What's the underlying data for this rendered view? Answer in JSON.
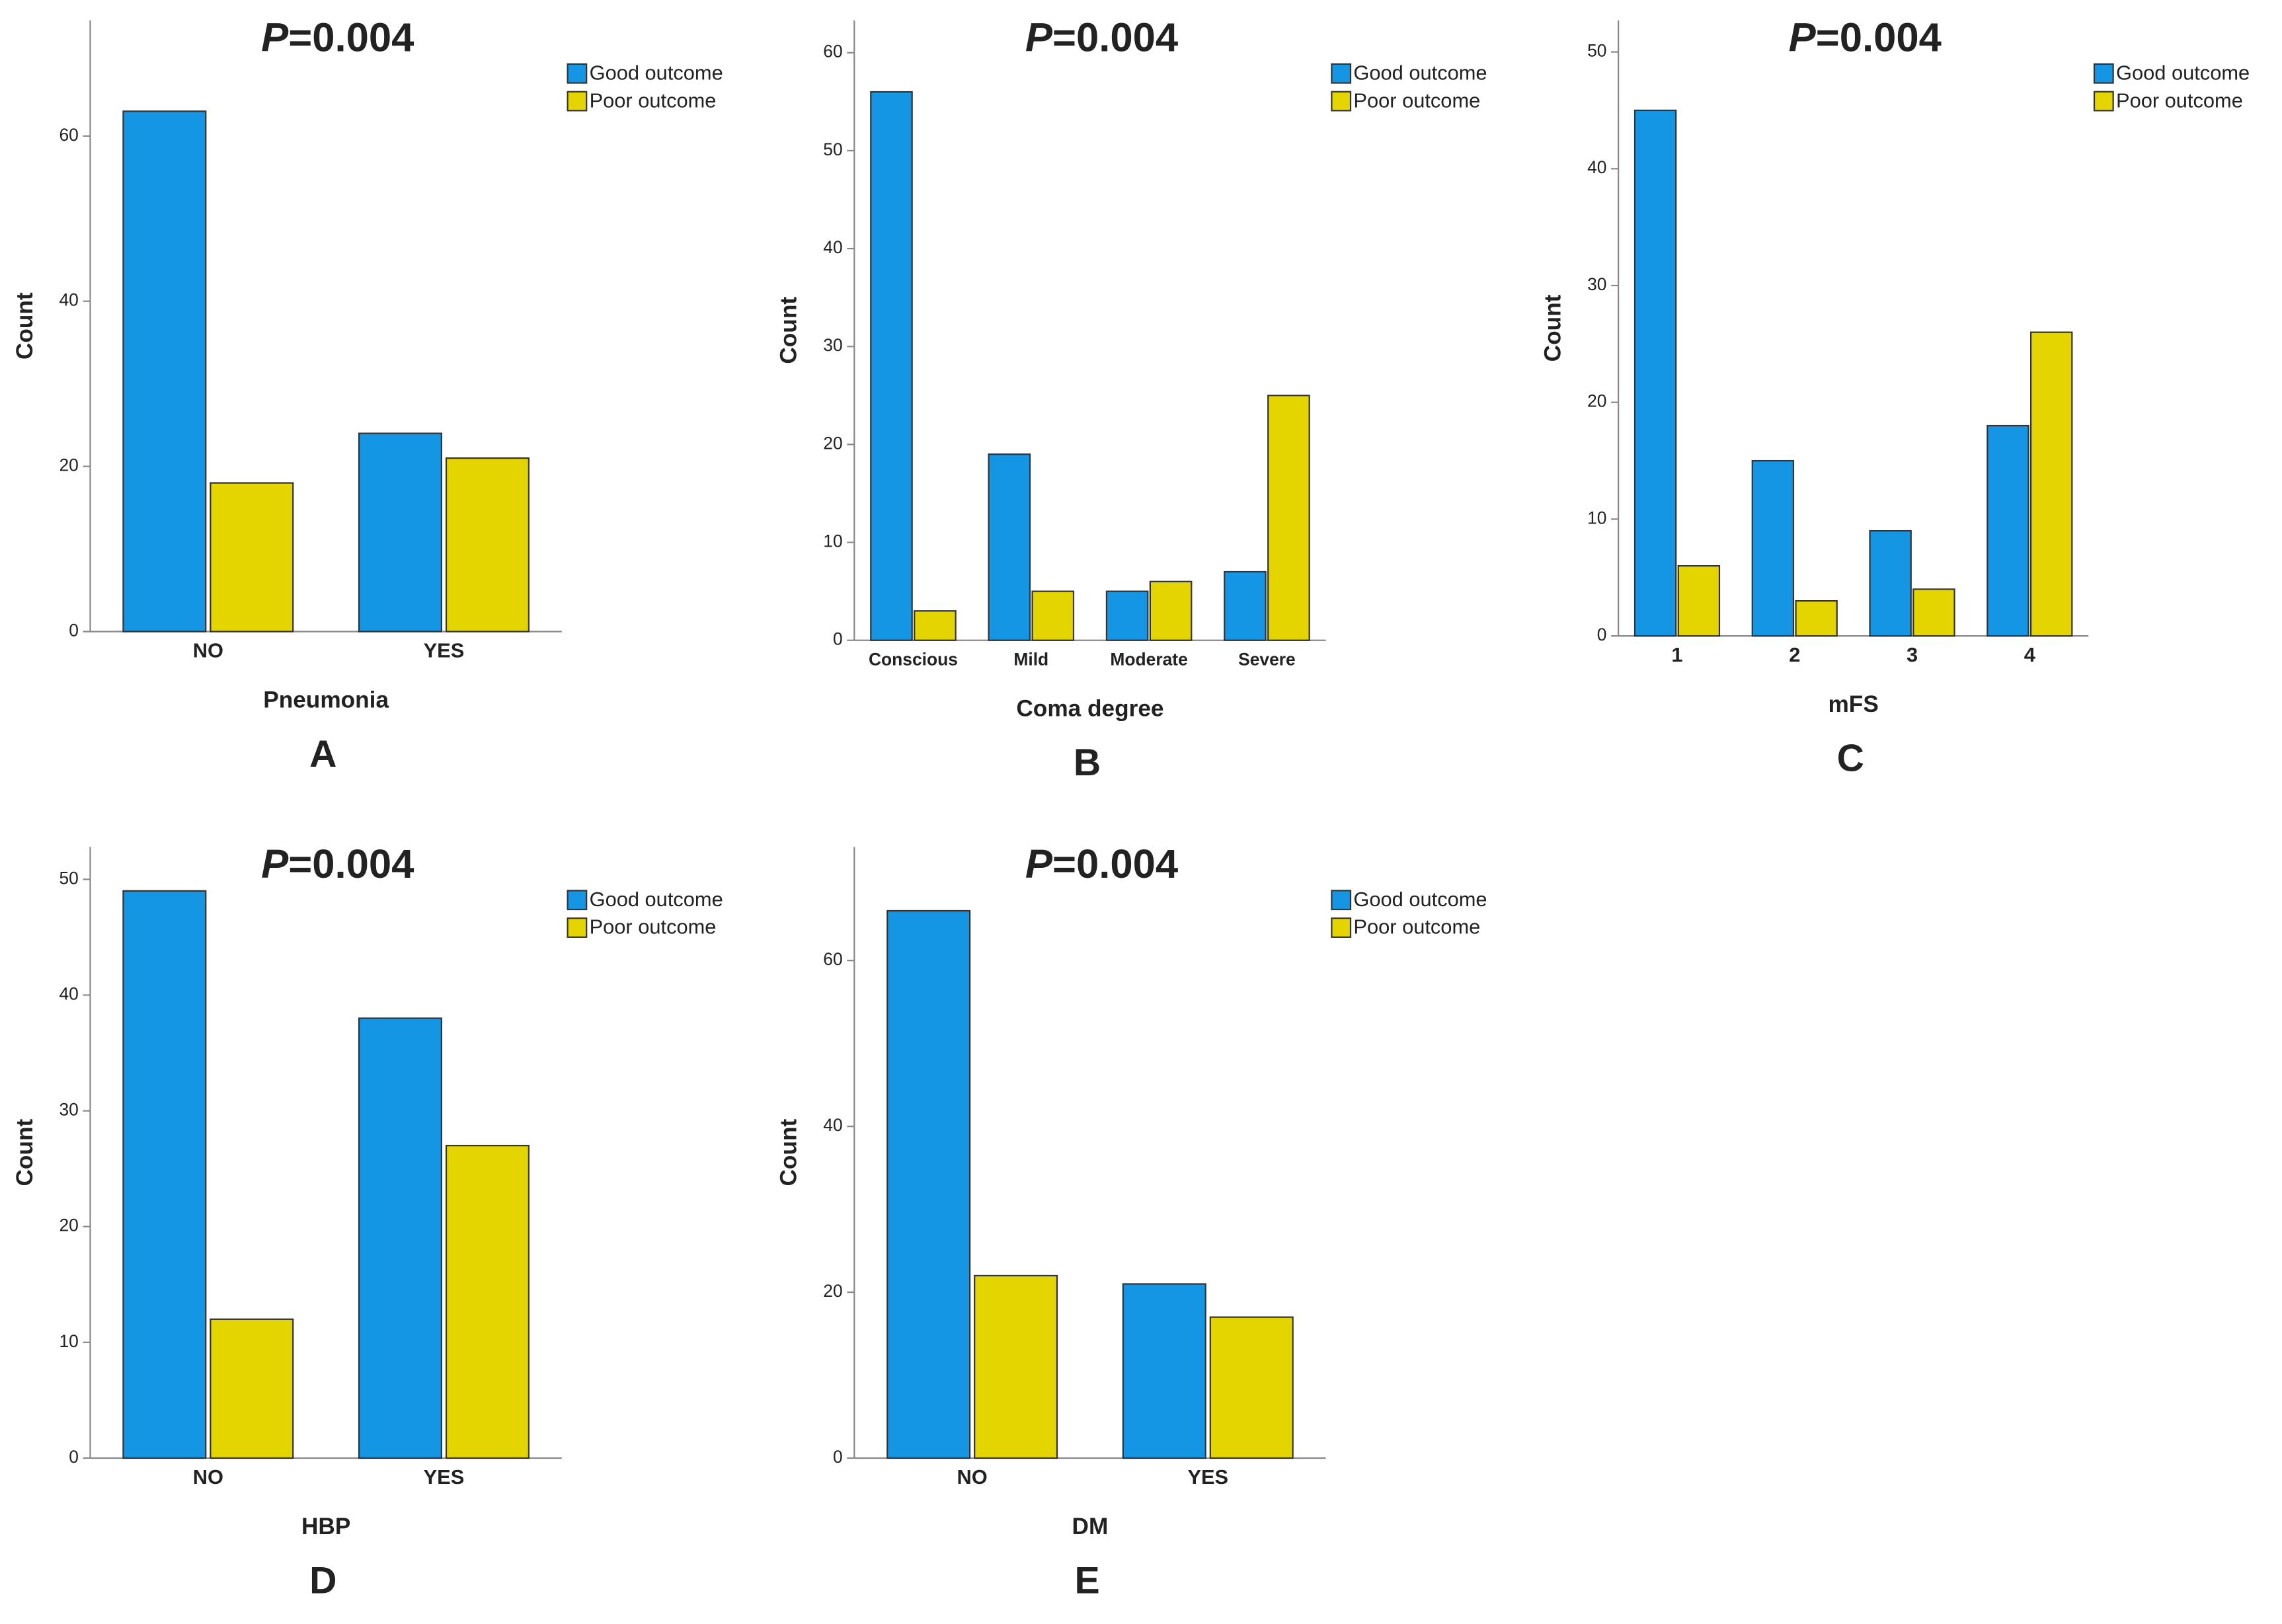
{
  "chart_data": [
    {
      "type": "bar",
      "title": "P=0.004",
      "panel_label": "A",
      "x_label": "Pneumonia",
      "y_label": "Count",
      "categories": [
        "NO",
        "YES"
      ],
      "series": [
        {
          "name": "Good outcome",
          "color": "#1496e4",
          "values": [
            63,
            24
          ]
        },
        {
          "name": "Poor outcome",
          "color": "#e4d500",
          "values": [
            18,
            21
          ]
        }
      ],
      "ylim": [
        0,
        74
      ],
      "yticks": [
        0,
        20,
        40,
        60
      ]
    },
    {
      "type": "bar",
      "title": "P=0.004",
      "panel_label": "B",
      "x_label": "Coma degree",
      "y_label": "Count",
      "categories": [
        "Conscious",
        "Mild",
        "Moderate",
        "Severe"
      ],
      "series": [
        {
          "name": "Good outcome",
          "color": "#1496e4",
          "values": [
            56,
            19,
            5,
            7
          ]
        },
        {
          "name": "Poor outcome",
          "color": "#e4d500",
          "values": [
            3,
            5,
            6,
            25
          ]
        }
      ],
      "ylim": [
        0,
        63.3
      ],
      "yticks": [
        0,
        10,
        20,
        30,
        40,
        50,
        60
      ]
    },
    {
      "type": "bar",
      "title": "P=0.004",
      "panel_label": "C",
      "x_label": "mFS",
      "y_label": "Count",
      "categories": [
        "1",
        "2",
        "3",
        "4"
      ],
      "series": [
        {
          "name": "Good outcome",
          "color": "#1496e4",
          "values": [
            45,
            15,
            9,
            18
          ]
        },
        {
          "name": "Poor outcome",
          "color": "#e4d500",
          "values": [
            6,
            3,
            4,
            26
          ]
        }
      ],
      "ylim": [
        0,
        52.7
      ],
      "yticks": [
        0,
        10,
        20,
        30,
        40,
        50
      ]
    },
    {
      "type": "bar",
      "title": "P=0.004",
      "panel_label": "D",
      "x_label": "HBP",
      "y_label": "Count",
      "categories": [
        "NO",
        "YES"
      ],
      "series": [
        {
          "name": "Good outcome",
          "color": "#1496e4",
          "values": [
            49,
            38
          ]
        },
        {
          "name": "Poor outcome",
          "color": "#e4d500",
          "values": [
            12,
            27
          ]
        }
      ],
      "ylim": [
        0,
        52.8
      ],
      "yticks": [
        0,
        10,
        20,
        30,
        40,
        50
      ]
    },
    {
      "type": "bar",
      "title": "P=0.004",
      "panel_label": "E",
      "x_label": "DM",
      "y_label": "Count",
      "categories": [
        "NO",
        "YES"
      ],
      "series": [
        {
          "name": "Good outcome",
          "color": "#1496e4",
          "values": [
            66,
            21
          ]
        },
        {
          "name": "Poor outcome",
          "color": "#e4d500",
          "values": [
            22,
            17
          ]
        }
      ],
      "ylim": [
        0,
        73.7
      ],
      "yticks": [
        0,
        20,
        40,
        60
      ]
    }
  ]
}
